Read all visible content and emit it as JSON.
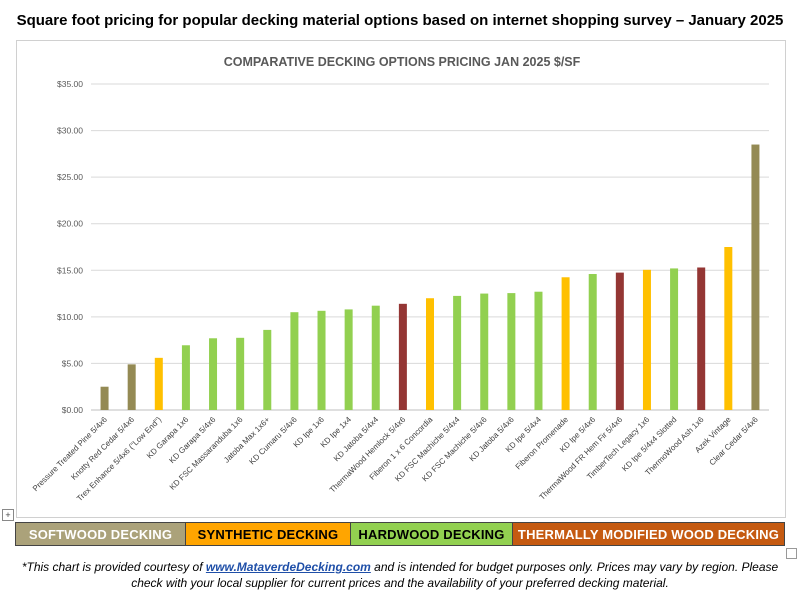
{
  "headline": "Square foot pricing for popular decking material options based on internet shopping survey – January 2025",
  "colors": {
    "softwood": "#948a54",
    "synthetic": "#ffc000",
    "hardwood": "#92d050",
    "thermal": "#943634",
    "legend_softwood": "#aba27a",
    "legend_synthetic": "#ffa500",
    "legend_hardwood": "#92d050",
    "legend_thermal": "#c55a11"
  },
  "chart_data": {
    "type": "bar",
    "title": "COMPARATIVE DECKING OPTIONS PRICING JAN 2025 $/SF",
    "xlabel": "",
    "ylabel": "",
    "ylim": [
      0,
      35
    ],
    "yticks": [
      "$0.00",
      "$5.00",
      "$10.00",
      "$15.00",
      "$20.00",
      "$25.00",
      "$30.00",
      "$35.00"
    ],
    "grid": true,
    "categories": [
      "Pressure Treated Pine 5/4x6",
      "Knotty Red Cedar 5/4x6",
      "Trex Enhance 5/4x6 (\"Low End\")",
      "KD Garapa 1x6",
      "KD Garapa 5/4x6",
      "KD FSC Massaranduba 1x6",
      "Jatoba Max 1x6+",
      "KD Cumaru 5/4x6",
      "KD Ipe 1x6",
      "KD Ipe 1x4",
      "KD Jatoba 5/4x4",
      "ThermaWood Hemlock 5/4x6",
      "Fiberon 1 x 6 Concordia",
      "KD FSC Machiche 5/4x4",
      "KD FSC Machiche 5/4x6",
      "KD Jatoba 5/4x6",
      "KD Ipe 5/4x4",
      "Fiberon Promenade",
      "KD Ipe 5/4x6",
      "ThermaWood FR Hem Fir 5/4x6",
      "TimberTech Legacy 1x6",
      "KD Ipe 5/4x4 Slotted",
      "ThermoWood Ash 1x6",
      "Azek Vintage",
      "Clear Cedar 5/4x6"
    ],
    "values": [
      2.5,
      4.9,
      5.6,
      6.95,
      7.7,
      7.75,
      8.6,
      10.5,
      10.65,
      10.8,
      11.2,
      11.4,
      12.0,
      12.25,
      12.5,
      12.55,
      12.7,
      14.25,
      14.6,
      14.75,
      15.05,
      15.2,
      15.3,
      17.5,
      28.5
    ],
    "groups": [
      "softwood",
      "softwood",
      "synthetic",
      "hardwood",
      "hardwood",
      "hardwood",
      "hardwood",
      "hardwood",
      "hardwood",
      "hardwood",
      "hardwood",
      "thermal",
      "synthetic",
      "hardwood",
      "hardwood",
      "hardwood",
      "hardwood",
      "synthetic",
      "hardwood",
      "thermal",
      "synthetic",
      "hardwood",
      "thermal",
      "synthetic",
      "softwood"
    ]
  },
  "legend": [
    {
      "key": "softwood",
      "label": "SOFTWOOD DECKING"
    },
    {
      "key": "synthetic",
      "label": "SYNTHETIC DECKING"
    },
    {
      "key": "hardwood",
      "label": "HARDWOOD DECKING"
    },
    {
      "key": "thermal",
      "label": "THERMALLY MODIFIED WOOD DECKING"
    }
  ],
  "footnote": {
    "prefix": "*This chart is provided courtesy of ",
    "link": "www.MataverdeDecking.com",
    "suffix": " and is intended for budget purposes only. Prices may vary by region. Please check with your local supplier for current prices and the availability of your preferred decking material."
  },
  "anchor_glyph": "+"
}
